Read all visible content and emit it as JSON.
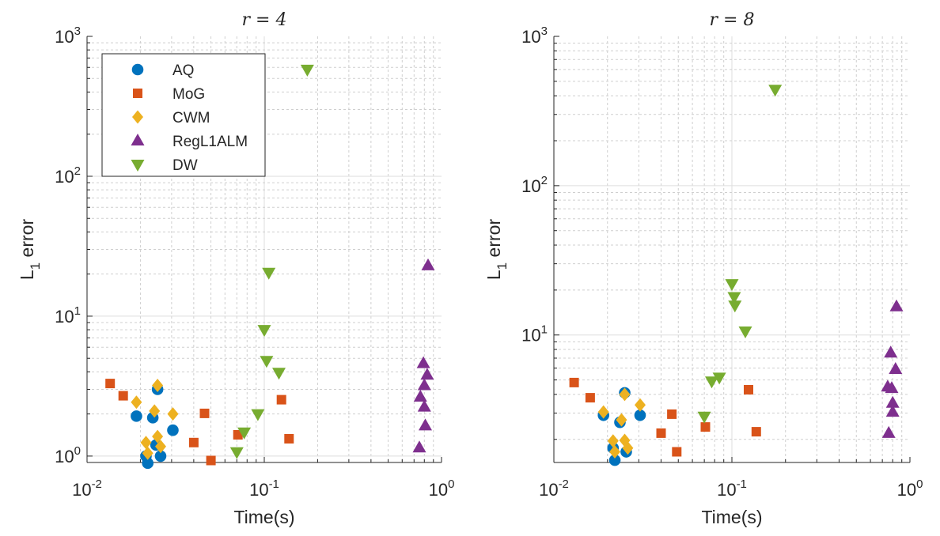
{
  "colors": {
    "AQ": "#0072BD",
    "MoG": "#D95319",
    "CWM": "#EDB120",
    "RegL1ALM": "#7E2F8E",
    "DW": "#77AC30",
    "grid_major": "#dedede",
    "grid_minor": "#cfcfcf",
    "axis": "#262626"
  },
  "chart_data": [
    {
      "type": "scatter",
      "title": "r = 4",
      "xlabel": "Time(s)",
      "ylabel": "L",
      "ylabel_subscript": "1",
      "ylabel_suffix": " error",
      "xscale": "log",
      "yscale": "log",
      "xlim": [
        0.01,
        1
      ],
      "ylim": [
        0.9,
        1000
      ],
      "grid": true,
      "legend_location": "top-left",
      "xticks": [
        {
          "base": "10",
          "exp": "-2"
        },
        {
          "base": "10",
          "exp": "-1"
        },
        {
          "base": "10",
          "exp": "0"
        }
      ],
      "yticks": [
        {
          "base": "10",
          "exp": "0",
          "value": 1
        },
        {
          "base": "10",
          "exp": "1",
          "value": 10
        },
        {
          "base": "10",
          "exp": "2",
          "value": 100
        },
        {
          "base": "10",
          "exp": "3",
          "value": 1000
        }
      ],
      "series": [
        {
          "name": "AQ",
          "marker": "circle",
          "points": [
            [
              0.019,
              1.93
            ],
            [
              0.0215,
              1.0
            ],
            [
              0.022,
              0.89
            ],
            [
              0.0235,
              1.88
            ],
            [
              0.0245,
              1.2
            ],
            [
              0.025,
              3.0
            ],
            [
              0.026,
              1.0
            ],
            [
              0.0305,
              1.53
            ]
          ]
        },
        {
          "name": "MoG",
          "marker": "square",
          "points": [
            [
              0.0135,
              3.3
            ],
            [
              0.016,
              2.7
            ],
            [
              0.04,
              1.25
            ],
            [
              0.046,
              2.02
            ],
            [
              0.05,
              0.93
            ],
            [
              0.071,
              1.42
            ],
            [
              0.125,
              2.53
            ],
            [
              0.138,
              1.33
            ]
          ]
        },
        {
          "name": "CWM",
          "marker": "diamond",
          "points": [
            [
              0.019,
              2.43
            ],
            [
              0.0215,
              1.25
            ],
            [
              0.022,
              1.05
            ],
            [
              0.024,
              2.1
            ],
            [
              0.025,
              3.2
            ],
            [
              0.025,
              1.38
            ],
            [
              0.026,
              1.17
            ],
            [
              0.0305,
              2.0
            ]
          ]
        },
        {
          "name": "RegL1ALM",
          "marker": "triangle-up",
          "points": [
            [
              0.75,
              1.15
            ],
            [
              0.76,
              2.65
            ],
            [
              0.79,
              4.6
            ],
            [
              0.8,
              3.2
            ],
            [
              0.8,
              2.25
            ],
            [
              0.81,
              1.65
            ],
            [
              0.83,
              3.8
            ],
            [
              0.84,
              23.0
            ]
          ]
        },
        {
          "name": "DW",
          "marker": "triangle-down",
          "points": [
            [
              0.07,
              1.07
            ],
            [
              0.077,
              1.48
            ],
            [
              0.092,
              2.0
            ],
            [
              0.1,
              8.0
            ],
            [
              0.103,
              4.8
            ],
            [
              0.106,
              20.5
            ],
            [
              0.121,
              3.95
            ],
            [
              0.175,
              580
            ]
          ]
        }
      ]
    },
    {
      "type": "scatter",
      "title": "r = 8",
      "xlabel": "Time(s)",
      "ylabel": "L",
      "ylabel_subscript": "1",
      "ylabel_suffix": " error",
      "xscale": "log",
      "yscale": "log",
      "xlim": [
        0.01,
        1
      ],
      "ylim": [
        1.4,
        1000
      ],
      "grid": true,
      "xticks": [
        {
          "base": "10",
          "exp": "-2"
        },
        {
          "base": "10",
          "exp": "-1"
        },
        {
          "base": "10",
          "exp": "0"
        }
      ],
      "yticks": [
        {
          "base": "10",
          "exp": "1",
          "value": 10
        },
        {
          "base": "10",
          "exp": "2",
          "value": 100
        },
        {
          "base": "10",
          "exp": "3",
          "value": 1000
        }
      ],
      "series": [
        {
          "name": "AQ",
          "marker": "circle",
          "points": [
            [
              0.019,
              2.9
            ],
            [
              0.0215,
              1.75
            ],
            [
              0.022,
              1.45
            ],
            [
              0.0235,
              2.6
            ],
            [
              0.025,
              4.1
            ],
            [
              0.0255,
              1.65
            ],
            [
              0.0305,
              2.9
            ]
          ]
        },
        {
          "name": "MoG",
          "marker": "square",
          "points": [
            [
              0.013,
              4.8
            ],
            [
              0.016,
              3.8
            ],
            [
              0.04,
              2.2
            ],
            [
              0.046,
              2.95
            ],
            [
              0.049,
              1.65
            ],
            [
              0.071,
              2.42
            ],
            [
              0.124,
              4.3
            ],
            [
              0.137,
              2.25
            ]
          ]
        },
        {
          "name": "CWM",
          "marker": "diamond",
          "points": [
            [
              0.019,
              3.05
            ],
            [
              0.0215,
              1.95
            ],
            [
              0.022,
              1.65
            ],
            [
              0.024,
              2.7
            ],
            [
              0.025,
              4.0
            ],
            [
              0.025,
              1.97
            ],
            [
              0.026,
              1.75
            ],
            [
              0.0305,
              3.4
            ]
          ]
        },
        {
          "name": "RegL1ALM",
          "marker": "triangle-up",
          "points": [
            [
              0.75,
              4.5
            ],
            [
              0.76,
              2.2
            ],
            [
              0.78,
              7.6
            ],
            [
              0.79,
              4.4
            ],
            [
              0.8,
              3.5
            ],
            [
              0.8,
              3.05
            ],
            [
              0.83,
              5.9
            ],
            [
              0.84,
              15.5
            ]
          ]
        },
        {
          "name": "DW",
          "marker": "triangle-down",
          "points": [
            [
              0.07,
              2.85
            ],
            [
              0.077,
              4.9
            ],
            [
              0.085,
              5.2
            ],
            [
              0.1,
              22.0
            ],
            [
              0.103,
              18.0
            ],
            [
              0.104,
              15.8
            ],
            [
              0.119,
              10.6
            ],
            [
              0.175,
              440
            ]
          ]
        }
      ]
    }
  ]
}
